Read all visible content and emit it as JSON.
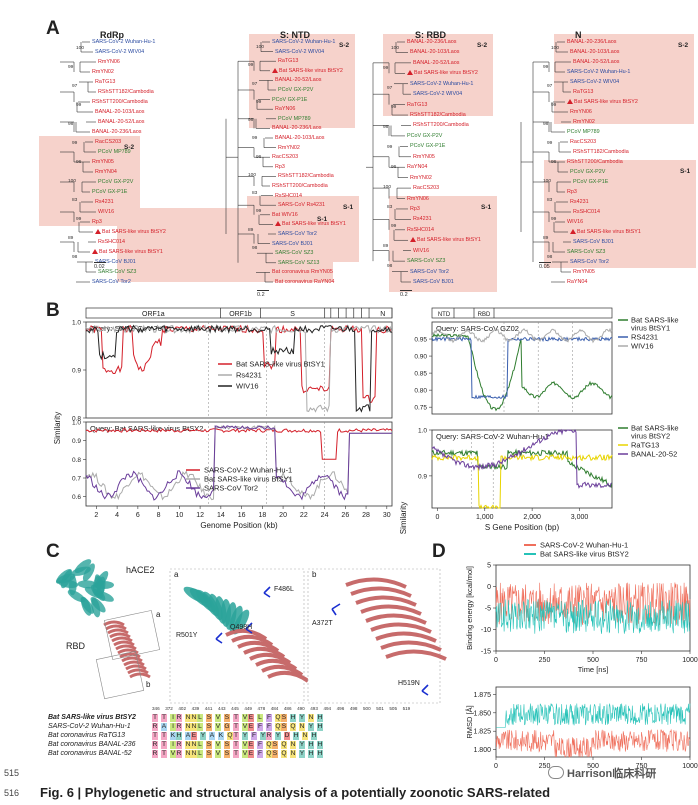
{
  "panels": {
    "a": "A",
    "b": "B",
    "c": "C",
    "d": "D"
  },
  "trees": {
    "rdrp": {
      "title": "RdRp",
      "s2": "S-2",
      "s1": "S-1",
      "scale": "0.02",
      "tips": [
        {
          "t": "SARS-CoV-2 Wuhan-Hu-1",
          "c": "b"
        },
        {
          "t": "SARS-CoV-2 WIV04",
          "c": "b"
        },
        {
          "t": "RmYN06",
          "c": "r"
        },
        {
          "t": "RmYN02",
          "c": "r"
        },
        {
          "t": "RaTG13",
          "c": "r"
        },
        {
          "t": "RShSTT182/Cambodia",
          "c": "r"
        },
        {
          "t": "RShSTT200/Cambodia",
          "c": "r"
        },
        {
          "t": "BANAL-20-103/Laos",
          "c": "r"
        },
        {
          "t": "BANAL-20-52/Laos",
          "c": "r"
        },
        {
          "t": "BANAL-20-236/Laos",
          "c": "r"
        },
        {
          "t": "RacCS203",
          "c": "r"
        },
        {
          "t": "PCoV MP789",
          "c": "g"
        },
        {
          "t": "RmYN05",
          "c": "r"
        },
        {
          "t": "RmYN04",
          "c": "r"
        },
        {
          "t": "PCoV GX-P2V",
          "c": "g"
        },
        {
          "t": "PCoV GX-P1E",
          "c": "g"
        },
        {
          "t": "Rs4231",
          "c": "r"
        },
        {
          "t": "WIV16",
          "c": "r"
        },
        {
          "t": "Rp3",
          "c": "r"
        },
        {
          "t": "Bat SARS-like virus BtSY2",
          "c": "r",
          "tri": true
        },
        {
          "t": "RsSHC014",
          "c": "r"
        },
        {
          "t": "Bat SARS-like virus BtSY1",
          "c": "r",
          "tri": true
        },
        {
          "t": "SARS-CoV BJ01",
          "c": "b"
        },
        {
          "t": "SARS-CoV SZ3",
          "c": "g"
        },
        {
          "t": "SARS-CoV Tor2",
          "c": "b"
        }
      ]
    },
    "ntd": {
      "title": "S: NTD",
      "s2": "S-2",
      "s1": "S-1",
      "scale": "0.2",
      "tips": [
        {
          "t": "SARS-CoV-2 Wuhan-Hu-1",
          "c": "b"
        },
        {
          "t": "SARS-CoV-2 WIV04",
          "c": "b"
        },
        {
          "t": "RaTG13",
          "c": "r"
        },
        {
          "t": "Bat SARS-like virus BtSY2",
          "c": "r",
          "tri": true
        },
        {
          "t": "BANAL-20-52/Laos",
          "c": "r"
        },
        {
          "t": "PCoV GX-P2V",
          "c": "g"
        },
        {
          "t": "PCoV GX-P1E",
          "c": "g"
        },
        {
          "t": "RaYN06",
          "c": "r"
        },
        {
          "t": "PCoV MP789",
          "c": "g"
        },
        {
          "t": "BANAL-20-236/Laos",
          "c": "r"
        },
        {
          "t": "BANAL-20-103/Laos",
          "c": "r"
        },
        {
          "t": "RmYN02",
          "c": "r"
        },
        {
          "t": "RacCS203",
          "c": "r"
        },
        {
          "t": "Rp3",
          "c": "r"
        },
        {
          "t": "RShSTT182/Cambodia",
          "c": "r"
        },
        {
          "t": "RShSTT200/Cambodia",
          "c": "r"
        },
        {
          "t": "RsSHC014",
          "c": "r"
        },
        {
          "t": "SARS-CoV Rs4231",
          "c": "r"
        },
        {
          "t": "Bat WIV16",
          "c": "r"
        },
        {
          "t": "Bat SARS-like virus BtSY1",
          "c": "r",
          "tri": true
        },
        {
          "t": "SARS-CoV Tor2",
          "c": "b"
        },
        {
          "t": "SARS-CoV BJ01",
          "c": "b"
        },
        {
          "t": "SARS-CoV SZ3",
          "c": "g"
        },
        {
          "t": "SARS-CoV SZ13",
          "c": "g"
        },
        {
          "t": "Bat coronavirus RmYN05",
          "c": "r"
        },
        {
          "t": "Bat coronavirus RaYN04",
          "c": "r"
        }
      ]
    },
    "rbd": {
      "title": "S: RBD",
      "s2": "S-2",
      "s1": "S-1",
      "scale": "0.2",
      "tips": [
        {
          "t": "BANAL-20-236/Laos",
          "c": "r"
        },
        {
          "t": "BANAL-20-103/Laos",
          "c": "r"
        },
        {
          "t": "BANAL-20-52/Laos",
          "c": "r"
        },
        {
          "t": "Bat SARS-like virus BtSY2",
          "c": "r",
          "tri": true
        },
        {
          "t": "SARS-CoV-2 Wuhan-Hu-1",
          "c": "b"
        },
        {
          "t": "SARS-CoV-2 WIV04",
          "c": "b"
        },
        {
          "t": "RaTG13",
          "c": "r"
        },
        {
          "t": "RShSTT182/Cambodia",
          "c": "r"
        },
        {
          "t": "RShSTT200/Cambodia",
          "c": "r"
        },
        {
          "t": "PCoV GX-P2V",
          "c": "g"
        },
        {
          "t": "PCoV GX-P1E",
          "c": "g"
        },
        {
          "t": "RmYN05",
          "c": "r"
        },
        {
          "t": "RaYN04",
          "c": "r"
        },
        {
          "t": "RmYN02",
          "c": "r"
        },
        {
          "t": "RacCS203",
          "c": "r"
        },
        {
          "t": "RmYN06",
          "c": "r"
        },
        {
          "t": "Rp3",
          "c": "r"
        },
        {
          "t": "Rs4231",
          "c": "r"
        },
        {
          "t": "RsSHC014",
          "c": "r"
        },
        {
          "t": "Bat SARS-like virus BtSY1",
          "c": "r",
          "tri": true
        },
        {
          "t": "WIV16",
          "c": "r"
        },
        {
          "t": "SARS-CoV SZ3",
          "c": "g"
        },
        {
          "t": "SARS-CoV Tor2",
          "c": "b"
        },
        {
          "t": "SARS-CoV BJ01",
          "c": "b"
        }
      ]
    },
    "n": {
      "title": "N",
      "s2": "S-2",
      "s1": "S-1",
      "scale": "0.05",
      "tips": [
        {
          "t": "BANAL-20-236/Laos",
          "c": "r"
        },
        {
          "t": "BANAL-20-103/Laos",
          "c": "r"
        },
        {
          "t": "BANAL-20-52/Laos",
          "c": "r"
        },
        {
          "t": "SARS-CoV-2 Wuhan-Hu-1",
          "c": "b"
        },
        {
          "t": "SARS-CoV-2 WIV04",
          "c": "b"
        },
        {
          "t": "RaTG13",
          "c": "r"
        },
        {
          "t": "Bat SARS-like virus BtSY2",
          "c": "r",
          "tri": true
        },
        {
          "t": "RmYN06",
          "c": "r"
        },
        {
          "t": "RmYN02",
          "c": "r"
        },
        {
          "t": "PCoV MP789",
          "c": "g"
        },
        {
          "t": "RacCS203",
          "c": "r"
        },
        {
          "t": "RShSTT182/Cambodia",
          "c": "r"
        },
        {
          "t": "RShSTT200/Cambodia",
          "c": "r"
        },
        {
          "t": "PCoV GX-P2V",
          "c": "g"
        },
        {
          "t": "PCoV GX-P1E",
          "c": "g"
        },
        {
          "t": "Rp3",
          "c": "r"
        },
        {
          "t": "Rs4231",
          "c": "r"
        },
        {
          "t": "RsSHC014",
          "c": "r"
        },
        {
          "t": "WIV16",
          "c": "r"
        },
        {
          "t": "Bat SARS-like virus BtSY1",
          "c": "r",
          "tri": true
        },
        {
          "t": "SARS-CoV BJ01",
          "c": "b"
        },
        {
          "t": "SARS-CoV SZ3",
          "c": "g"
        },
        {
          "t": "SARS-CoV Tor2",
          "c": "b"
        },
        {
          "t": "RmYN05",
          "c": "r"
        },
        {
          "t": "RaYN04",
          "c": "r"
        }
      ]
    }
  },
  "bootstraps": [
    "100",
    "98",
    "99",
    "100",
    "97",
    "94",
    "99",
    "100",
    "98",
    "91",
    "99",
    "88",
    "96",
    "99",
    "100",
    "94",
    "83",
    "100",
    "99",
    "99",
    "89",
    "88",
    "98",
    "100"
  ],
  "genome": {
    "genes": [
      "ORF1a",
      "ORF1b",
      "S",
      "N"
    ],
    "spike_domains": [
      "NTD",
      "RBD"
    ],
    "chart_data": [
      {
        "type": "line",
        "title": "Query: SARS-CoV Tor2",
        "ylabel": "Similarity",
        "ylim": [
          0.8,
          1.0
        ],
        "yticks": [
          "0.8",
          "0.9",
          "1.0"
        ],
        "series": [
          {
            "name": "Bat SARS-like virus BtSY1",
            "color": "#d4202a"
          },
          {
            "name": "Rs4231",
            "color": "#aaaaaa"
          },
          {
            "name": "WIV16",
            "color": "#222222"
          }
        ]
      },
      {
        "type": "line",
        "title": "Query: Bat SARS-like virus BtSY2",
        "ylim": [
          0.55,
          1.0
        ],
        "yticks": [
          "0.6",
          "0.7",
          "0.8",
          "0.9",
          "1.0"
        ],
        "xticks": [
          "2",
          "4",
          "6",
          "8",
          "10",
          "12",
          "14",
          "16",
          "18",
          "20",
          "22",
          "24",
          "26",
          "28",
          "30"
        ],
        "xlabel": "Genome Position (kb)",
        "series": [
          {
            "name": "SARS-CoV-2 Wuhan-Hu-1",
            "color": "#d4202a"
          },
          {
            "name": "Bat SARS-like virus BtSY1",
            "color": "#aaaaaa"
          },
          {
            "name": "SARS-CoV Tor2",
            "color": "#6a3d9a"
          }
        ]
      },
      {
        "type": "line",
        "title": "Query: SARS-CoV GZ02",
        "ylim": [
          0.73,
          1.0
        ],
        "yticks": [
          "0.75",
          "0.80",
          "0.85",
          "0.90",
          "0.95"
        ],
        "series": [
          {
            "name": "Bat SARS-like virus BtSY1",
            "color": "#2f7d2f"
          },
          {
            "name": "RS4231",
            "color": "#3a5fae"
          },
          {
            "name": "WIV16",
            "color": "#aaaaaa"
          }
        ]
      },
      {
        "type": "line",
        "title": "Query: SARS-CoV-2 Wuhan-Hu-1",
        "ylabel": "Similarity",
        "ylim": [
          0.83,
          1.0
        ],
        "yticks": [
          "0.9",
          "1.0"
        ],
        "xticks": [
          "0",
          "1,000",
          "2,000",
          "3,000"
        ],
        "xlabel": "S Gene Position (bp)",
        "series": [
          {
            "name": "Bat SARS-like virus BtSY2",
            "color": "#2f7d2f"
          },
          {
            "name": "RaTG13",
            "color": "#e8d400"
          },
          {
            "name": "BANAL-20-52",
            "color": "#6a3d9a"
          }
        ]
      }
    ]
  },
  "structure": {
    "hace2": "hACE2",
    "rbd": "RBD",
    "zoom_a": "a",
    "zoom_b": "b",
    "mutations": [
      "F486L",
      "R501Y",
      "Q498H",
      "A372T",
      "H519N"
    ],
    "alignment": {
      "positions": [
        "346",
        "372",
        "402",
        "439",
        "441",
        "443",
        "445",
        "449",
        "478",
        "484",
        "486",
        "490",
        "493",
        "494",
        "496",
        "498",
        "500",
        "501",
        "505",
        "519"
      ],
      "rows": [
        {
          "name": "Bat SARS-like virus BtSY2",
          "bold": true,
          "seq": [
            "T",
            "T",
            "IR",
            "NNL",
            "S",
            "V",
            "S",
            "T",
            "VE",
            "L",
            "F",
            "QS",
            "H",
            "Y",
            "N",
            "H"
          ]
        },
        {
          "name": "SARS-CoV-2 Wuhan-Hu-1",
          "bold": false,
          "seq": [
            "R",
            "A",
            "IR",
            "NNL",
            "S",
            "V",
            "G",
            "T",
            "VE",
            "F",
            "F",
            "QS",
            "Q",
            "N",
            "Y",
            "H"
          ]
        },
        {
          "name": "Bat coronavirus RaTG13",
          "bold": false,
          "seq": [
            "T",
            "T",
            "KH",
            "AE",
            "Y",
            "A",
            "K",
            "QT",
            "Y",
            "F",
            "YR",
            "Y",
            "D",
            "H",
            "N",
            "H"
          ]
        },
        {
          "name": "Bat coronavirus BANAL-236",
          "bold": false,
          "seq": [
            "R",
            "T",
            "IR",
            "NNL",
            "S",
            "V",
            "S",
            "T",
            "VE",
            "F",
            "QS",
            "Q",
            "N",
            "Y",
            "H",
            "H"
          ]
        },
        {
          "name": "Bat coronavirus BANAL-52",
          "bold": false,
          "seq": [
            "R",
            "T",
            "VR",
            "NNL",
            "S",
            "V",
            "S",
            "T",
            "VE",
            "F",
            "QS",
            "Q",
            "N",
            "Y",
            "H",
            "H"
          ]
        }
      ]
    }
  },
  "md": {
    "chart_data": [
      {
        "type": "line",
        "ylabel": "Binding energy [kcal/mol]",
        "xlabel": "Time [ns]",
        "ylim": [
          -15,
          5
        ],
        "yticks": [
          "5",
          "0",
          "-5",
          "-10",
          "-15"
        ],
        "xticks": [
          "0",
          "250",
          "500",
          "750",
          "1000"
        ],
        "series": [
          {
            "name": "SARS-CoV-2 Wuhan-Hu-1",
            "color": "#ef6f5c"
          },
          {
            "name": "Bat SARS-like virus BtSY2",
            "color": "#26c2b8"
          }
        ]
      },
      {
        "type": "line",
        "ylabel": "RMSD [Å]",
        "xlabel": "Time [ns]",
        "ylim": [
          1.79,
          1.885
        ],
        "yticks": [
          "1.875",
          "1.850",
          "1.825",
          "1.800"
        ],
        "xticks": [
          "0",
          "250",
          "500",
          "750",
          "1000"
        ],
        "series": [
          {
            "name": "SARS-CoV-2 Wuhan-Hu-1",
            "color": "#ef6f5c"
          },
          {
            "name": "Bat SARS-like virus BtSY2",
            "color": "#26c2b8"
          }
        ]
      }
    ]
  },
  "footer": {
    "caption": "Fig. 6 | Phylogenetic and structural analysis of a potentially zoonotic SARS-related",
    "line1": "515",
    "line2": "516",
    "watermark": "Harrison临床科研"
  }
}
